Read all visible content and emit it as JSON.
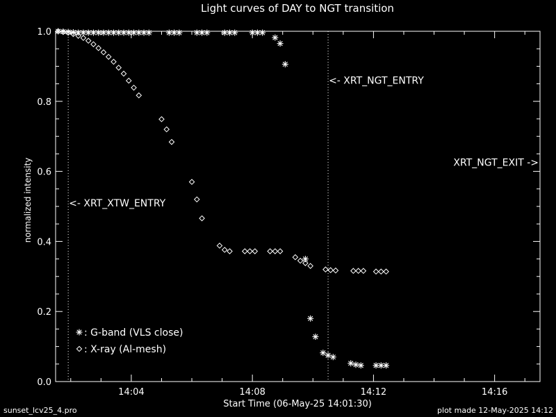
{
  "colors": {
    "background": "#000000",
    "foreground": "#ffffff"
  },
  "chart_data": {
    "type": "scatter",
    "title": "Light curves of DAY to NGT transition",
    "xlabel": "Start Time (06-May-25 14:01:30)",
    "ylabel": "normalized intensity",
    "x_unit": "time",
    "xlim": [
      "14:01:30",
      "14:17:30"
    ],
    "ylim": [
      0.0,
      1.0
    ],
    "x_ticks": [
      "14:04",
      "14:08",
      "14:12",
      "14:16"
    ],
    "y_ticks": [
      "0.0",
      "0.2",
      "0.4",
      "0.6",
      "0.8",
      "1.0"
    ],
    "grid": false,
    "series": [
      {
        "name": ": G-band (VLS close)",
        "marker": "asterisk",
        "points": [
          [
            "14:01:35",
            1.0
          ],
          [
            "14:01:45",
            0.999
          ],
          [
            "14:01:55",
            0.998
          ],
          [
            "14:02:05",
            0.997
          ],
          [
            "14:02:15",
            0.996
          ],
          [
            "14:02:25",
            0.996
          ],
          [
            "14:02:35",
            0.996
          ],
          [
            "14:02:45",
            0.996
          ],
          [
            "14:02:55",
            0.996
          ],
          [
            "14:03:05",
            0.996
          ],
          [
            "14:03:15",
            0.996
          ],
          [
            "14:03:25",
            0.996
          ],
          [
            "14:03:35",
            0.996
          ],
          [
            "14:03:45",
            0.996
          ],
          [
            "14:03:55",
            0.996
          ],
          [
            "14:04:05",
            0.996
          ],
          [
            "14:04:15",
            0.996
          ],
          [
            "14:04:25",
            0.996
          ],
          [
            "14:04:35",
            0.996
          ],
          [
            "14:05:15",
            0.996
          ],
          [
            "14:05:25",
            0.996
          ],
          [
            "14:05:35",
            0.996
          ],
          [
            "14:06:10",
            0.996
          ],
          [
            "14:06:20",
            0.996
          ],
          [
            "14:06:30",
            0.996
          ],
          [
            "14:07:05",
            0.996
          ],
          [
            "14:07:15",
            0.996
          ],
          [
            "14:07:25",
            0.996
          ],
          [
            "14:08:00",
            0.996
          ],
          [
            "14:08:10",
            0.996
          ],
          [
            "14:08:20",
            0.996
          ],
          [
            "14:08:45",
            0.982
          ],
          [
            "14:08:55",
            0.965
          ],
          [
            "14:09:05",
            0.906
          ],
          [
            "14:09:45",
            0.35
          ],
          [
            "14:09:55",
            0.18
          ],
          [
            "14:10:05",
            0.128
          ],
          [
            "14:10:20",
            0.082
          ],
          [
            "14:10:30",
            0.075
          ],
          [
            "14:10:40",
            0.07
          ],
          [
            "14:11:15",
            0.052
          ],
          [
            "14:11:25",
            0.048
          ],
          [
            "14:11:35",
            0.046
          ],
          [
            "14:12:05",
            0.046
          ],
          [
            "14:12:15",
            0.046
          ],
          [
            "14:12:25",
            0.046
          ]
        ]
      },
      {
        "name": ": X-ray (Al-mesh)",
        "marker": "diamond",
        "points": [
          [
            "14:01:35",
            1.0
          ],
          [
            "14:01:45",
            0.998
          ],
          [
            "14:01:55",
            0.996
          ],
          [
            "14:02:05",
            0.992
          ],
          [
            "14:02:15",
            0.987
          ],
          [
            "14:02:25",
            0.981
          ],
          [
            "14:02:35",
            0.973
          ],
          [
            "14:02:45",
            0.963
          ],
          [
            "14:02:55",
            0.952
          ],
          [
            "14:03:05",
            0.94
          ],
          [
            "14:03:15",
            0.927
          ],
          [
            "14:03:25",
            0.913
          ],
          [
            "14:03:35",
            0.896
          ],
          [
            "14:03:45",
            0.879
          ],
          [
            "14:03:55",
            0.859
          ],
          [
            "14:04:05",
            0.839
          ],
          [
            "14:04:15",
            0.817
          ],
          [
            "14:05:00",
            0.749
          ],
          [
            "14:05:10",
            0.72
          ],
          [
            "14:05:20",
            0.684
          ],
          [
            "14:06:00",
            0.57
          ],
          [
            "14:06:10",
            0.52
          ],
          [
            "14:06:20",
            0.466
          ],
          [
            "14:06:55",
            0.388
          ],
          [
            "14:07:05",
            0.376
          ],
          [
            "14:07:15",
            0.372
          ],
          [
            "14:07:45",
            0.372
          ],
          [
            "14:07:55",
            0.372
          ],
          [
            "14:08:05",
            0.372
          ],
          [
            "14:08:35",
            0.372
          ],
          [
            "14:08:45",
            0.372
          ],
          [
            "14:08:55",
            0.372
          ],
          [
            "14:09:25",
            0.355
          ],
          [
            "14:09:35",
            0.345
          ],
          [
            "14:09:45",
            0.338
          ],
          [
            "14:09:55",
            0.33
          ],
          [
            "14:10:25",
            0.32
          ],
          [
            "14:10:35",
            0.318
          ],
          [
            "14:10:45",
            0.317
          ],
          [
            "14:11:20",
            0.316
          ],
          [
            "14:11:30",
            0.316
          ],
          [
            "14:11:40",
            0.316
          ],
          [
            "14:12:05",
            0.314
          ],
          [
            "14:12:15",
            0.314
          ],
          [
            "14:12:25",
            0.314
          ]
        ]
      }
    ],
    "events": [
      {
        "label": "<- XRT_XTW_ENTRY",
        "time": "14:01:55",
        "line": true,
        "label_y": 0.51
      },
      {
        "label": "<- XRT_NGT_ENTRY",
        "time": "14:10:30",
        "line": true,
        "label_y": 0.86
      },
      {
        "label": "XRT_NGT_EXIT ->",
        "time": "14:17:30",
        "line": false,
        "label_y": 0.626
      }
    ],
    "legend_position": "bottom-left"
  },
  "footer": {
    "left": "sunset_lcv25_4.pro",
    "right": "plot made 12-May-2025 14:12"
  }
}
